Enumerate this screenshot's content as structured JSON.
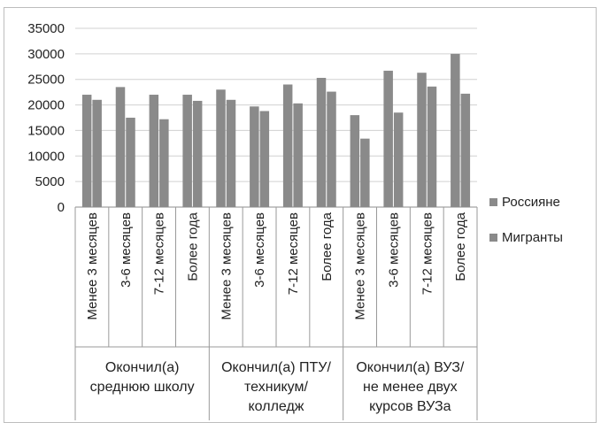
{
  "chart_data": {
    "type": "bar",
    "title": "",
    "xlabel": "",
    "ylabel": "",
    "ylim": [
      0,
      35000
    ],
    "yticks": [
      0,
      5000,
      10000,
      15000,
      20000,
      25000,
      30000,
      35000
    ],
    "grid": true,
    "legend_position": "right",
    "groups": [
      {
        "label_lines": [
          "Окончил(а)",
          "среднюю школу"
        ],
        "size": 4
      },
      {
        "label_lines": [
          "Окончил(а) ПТУ/",
          "техникум/",
          "колледж"
        ],
        "size": 4
      },
      {
        "label_lines": [
          "Окончил(а) ВУЗ/",
          "не менее двух",
          "курсов ВУЗа"
        ],
        "size": 4
      }
    ],
    "categories": [
      "Менее 3 месяцев",
      "3-6 месяцев",
      "7-12 месяцев",
      "Более года",
      "Менее 3 месяцев",
      "3-6 месяцев",
      "7-12 месяцев",
      "Более года",
      "Менее 3 месяцев",
      "3-6 месяцев",
      "7-12 месяцев",
      "Более года"
    ],
    "series": [
      {
        "name": "Россияне",
        "color": "#8a8a8a",
        "values": [
          22000,
          23500,
          22000,
          22000,
          23000,
          19700,
          24000,
          25300,
          18000,
          26700,
          26300,
          30000
        ]
      },
      {
        "name": "Мигранты",
        "color": "#8a8a8a",
        "values": [
          21000,
          17500,
          17200,
          20800,
          21000,
          18800,
          20300,
          22600,
          13400,
          18500,
          23600,
          22200
        ]
      }
    ]
  }
}
